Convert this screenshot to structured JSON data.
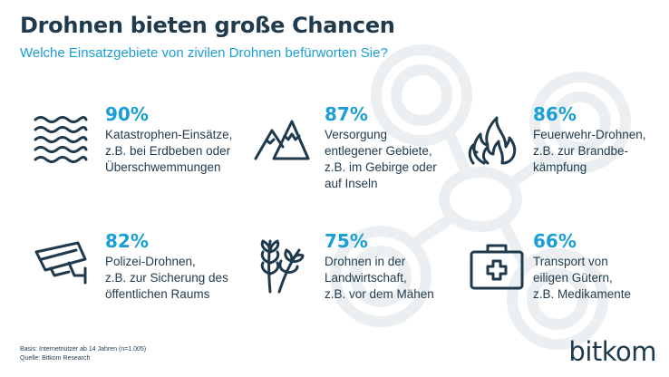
{
  "header": {
    "title": "Drohnen bieten große Chancen",
    "subtitle": "Welche Einsatzgebiete von zivilen Drohnen befürworten Sie?"
  },
  "items": [
    {
      "percent": "90%",
      "text": "Katastrophen-Einsätze,\nz.B. bei Erdbeben oder\nÜberschwemmungen",
      "icon": "waves-icon"
    },
    {
      "percent": "87%",
      "text": "Versorgung\nentlegener Gebiete,\nz.B. im Gebirge oder\nauf Inseln",
      "icon": "mountains-icon"
    },
    {
      "percent": "86%",
      "text": "Feuerwehr-Drohnen,\nz.B. zur Brandbe-\nkämpfung",
      "icon": "flames-icon"
    },
    {
      "percent": "82%",
      "text": "Polizei-Drohnen,\nz.B. zur Sicherung des\nöffentlichen Raums",
      "icon": "security-camera-icon"
    },
    {
      "percent": "75%",
      "text": "Drohnen in der\nLandwirtschaft,\nz.B. vor dem Mähen",
      "icon": "wheat-icon"
    },
    {
      "percent": "66%",
      "text": "Transport von\neiligen Gütern,\nz.B. Medikamente",
      "icon": "first-aid-kit-icon"
    }
  ],
  "footnote": {
    "basis": "Basis: Internetnutzer ab 14 Jahren (n=1.005)",
    "source": "Quelle: Bitkom Research"
  },
  "logo": {
    "text": "bitkom"
  },
  "colors": {
    "accent": "#1a9ed6",
    "text": "#1f3a4d",
    "watermark": "#eceff1"
  }
}
